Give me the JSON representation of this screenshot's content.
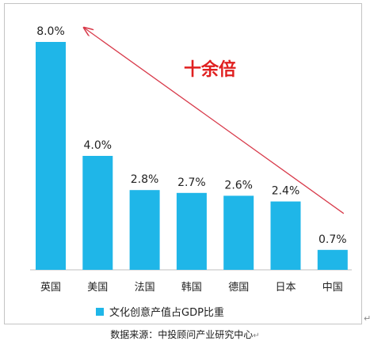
{
  "chart_data": {
    "type": "bar",
    "categories": [
      "英国",
      "美国",
      "法国",
      "韩国",
      "德国",
      "日本",
      "中国"
    ],
    "series": [
      {
        "name": "文化创意产值占GDP比重",
        "values": [
          8.0,
          4.0,
          2.8,
          2.7,
          2.6,
          2.4,
          0.7
        ]
      }
    ],
    "data_labels": [
      "8.0%",
      "4.0%",
      "2.8%",
      "2.7%",
      "2.6%",
      "2.4%",
      "0.7%"
    ],
    "ylim": [
      0,
      8.0
    ],
    "grid": false,
    "legend": "bottom-left",
    "annotation": {
      "text": "十余倍",
      "arrow": "from 中国 bar up to 英国 bar"
    },
    "colors": {
      "bar": "#1fb6e8",
      "annotation": "#e02020",
      "arrow": "#d83a4a",
      "axis": "#bfbfbf"
    }
  },
  "caption": {
    "text": "数据来源：中投顾问产业研究中心",
    "mark": "↵"
  },
  "side_mark": "↵"
}
